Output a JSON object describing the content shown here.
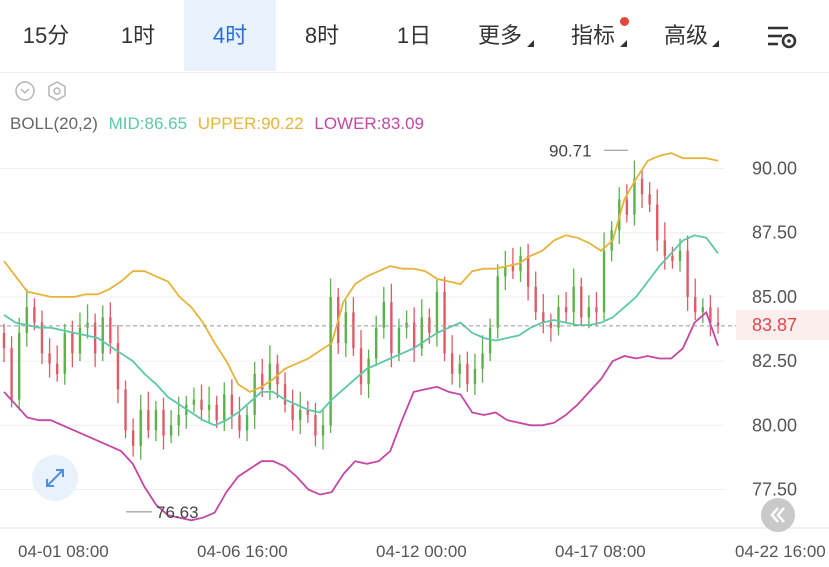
{
  "tabs": [
    {
      "label": "15分",
      "active": false
    },
    {
      "label": "1时",
      "active": false
    },
    {
      "label": "4时",
      "active": true
    },
    {
      "label": "8时",
      "active": false
    },
    {
      "label": "1日",
      "active": false
    },
    {
      "label": "更多",
      "active": false
    },
    {
      "label": "指标",
      "active": false
    },
    {
      "label": "高级",
      "active": false
    }
  ],
  "icons": {
    "collapse": "chevron-down-circle-icon",
    "settings_small": "hexagon-settings-icon",
    "settings": "list-gear-icon",
    "expand": "expand-arrows-icon",
    "back": "double-chevron-left-icon"
  },
  "legend": {
    "name": "BOLL(20,2)",
    "mid": "MID:86.65",
    "upper": "UPPER:90.22",
    "lower": "LOWER:83.09"
  },
  "colors": {
    "up": "#5bb24a",
    "down": "#df5b67",
    "mid": "#5cc8a8",
    "upper": "#e7b43a",
    "lower": "#c447a3",
    "active_tab": "#2a6fd6"
  },
  "current_price": "83.87",
  "chart_data": {
    "type": "line",
    "subtype": "candlestick-with-bollinger-bands",
    "x_ticks": [
      "04-01 08:00",
      "04-06 16:00",
      "04-12 00:00",
      "04-17 08:00",
      "04-22 16:00"
    ],
    "y_ticks": [
      "90.00",
      "87.50",
      "85.00",
      "82.50",
      "80.00",
      "77.50"
    ],
    "ylim": [
      76.0,
      91.5
    ],
    "grid": true,
    "annotations": [
      {
        "label": "90.71",
        "value": 90.71,
        "type": "high"
      },
      {
        "label": "76.63",
        "value": 76.63,
        "type": "low"
      }
    ],
    "candles_close": [
      83.0,
      81.0,
      83.6,
      84.6,
      84.0,
      82.8,
      82.4,
      82.0,
      83.6,
      82.8,
      83.8,
      84.0,
      82.8,
      84.2,
      83.2,
      81.4,
      79.8,
      79.2,
      80.6,
      79.8,
      80.6,
      79.6,
      80.0,
      80.4,
      80.8,
      81.0,
      80.6,
      80.8,
      80.2,
      81.2,
      80.4,
      79.8,
      80.4,
      82.0,
      81.4,
      82.4,
      81.6,
      80.8,
      80.2,
      80.6,
      80.4,
      79.6,
      80.0,
      85.0,
      83.2,
      84.4,
      83.0,
      81.6,
      82.6,
      83.8,
      84.8,
      82.8,
      83.8,
      84.0,
      83.0,
      84.2,
      83.6,
      85.2,
      82.8,
      82.0,
      82.4,
      81.6,
      82.2,
      82.8,
      83.8,
      85.8,
      86.2,
      86.0,
      86.6,
      85.4,
      84.4,
      84.0,
      83.8,
      84.6,
      84.4,
      85.4,
      84.2,
      84.6,
      84.4,
      86.8,
      87.6,
      88.8,
      88.2,
      89.6,
      89.0,
      88.6,
      87.2,
      86.6,
      86.4,
      86.8,
      85.0,
      84.4,
      84.6,
      84.0,
      83.87
    ],
    "series": [
      {
        "name": "UPPER",
        "values": [
          86.4,
          85.8,
          85.2,
          85.1,
          85.0,
          85.0,
          85.0,
          85.1,
          85.1,
          85.3,
          85.6,
          86.0,
          86.0,
          85.8,
          85.6,
          85.0,
          84.6,
          84.0,
          83.2,
          82.5,
          81.6,
          81.3,
          81.5,
          81.8,
          82.2,
          82.4,
          82.6,
          82.9,
          83.2,
          84.8,
          85.5,
          85.8,
          86.0,
          86.2,
          86.1,
          86.1,
          86.0,
          85.7,
          85.6,
          85.5,
          86.0,
          86.1,
          86.1,
          86.2,
          86.3,
          86.6,
          86.8,
          87.2,
          87.4,
          87.3,
          87.1,
          86.8,
          87.2,
          88.8,
          89.6,
          90.3,
          90.5,
          90.6,
          90.4,
          90.4,
          90.4,
          90.3
        ]
      },
      {
        "name": "MID",
        "values": [
          84.3,
          84.0,
          83.9,
          83.8,
          83.8,
          83.7,
          83.6,
          83.5,
          83.4,
          83.1,
          82.8,
          82.5,
          82.0,
          81.6,
          81.1,
          80.8,
          80.5,
          80.2,
          80.0,
          80.2,
          80.5,
          80.9,
          81.3,
          81.3,
          81.0,
          80.8,
          80.6,
          80.5,
          81.0,
          81.4,
          81.8,
          82.2,
          82.4,
          82.6,
          82.8,
          83.0,
          83.3,
          83.6,
          83.8,
          84.0,
          83.6,
          83.4,
          83.3,
          83.4,
          83.5,
          83.8,
          84.0,
          84.1,
          84.0,
          83.9,
          83.9,
          84.0,
          84.2,
          84.6,
          85.0,
          85.6,
          86.2,
          86.7,
          87.2,
          87.4,
          87.3,
          86.7
        ]
      },
      {
        "name": "LOWER",
        "values": [
          81.3,
          80.8,
          80.3,
          80.2,
          80.2,
          80.0,
          79.8,
          79.6,
          79.4,
          79.2,
          79.0,
          78.5,
          77.6,
          76.9,
          76.5,
          76.4,
          76.3,
          76.4,
          76.6,
          77.4,
          78.0,
          78.3,
          78.6,
          78.6,
          78.4,
          78.0,
          77.5,
          77.3,
          77.4,
          78.1,
          78.6,
          78.5,
          78.6,
          79.0,
          80.2,
          81.3,
          81.4,
          81.5,
          81.3,
          81.2,
          80.5,
          80.4,
          80.5,
          80.2,
          80.1,
          80.0,
          80.0,
          80.1,
          80.4,
          80.8,
          81.3,
          81.8,
          82.5,
          82.7,
          82.6,
          82.7,
          82.6,
          82.6,
          83.0,
          84.0,
          84.4,
          83.1
        ]
      }
    ]
  }
}
